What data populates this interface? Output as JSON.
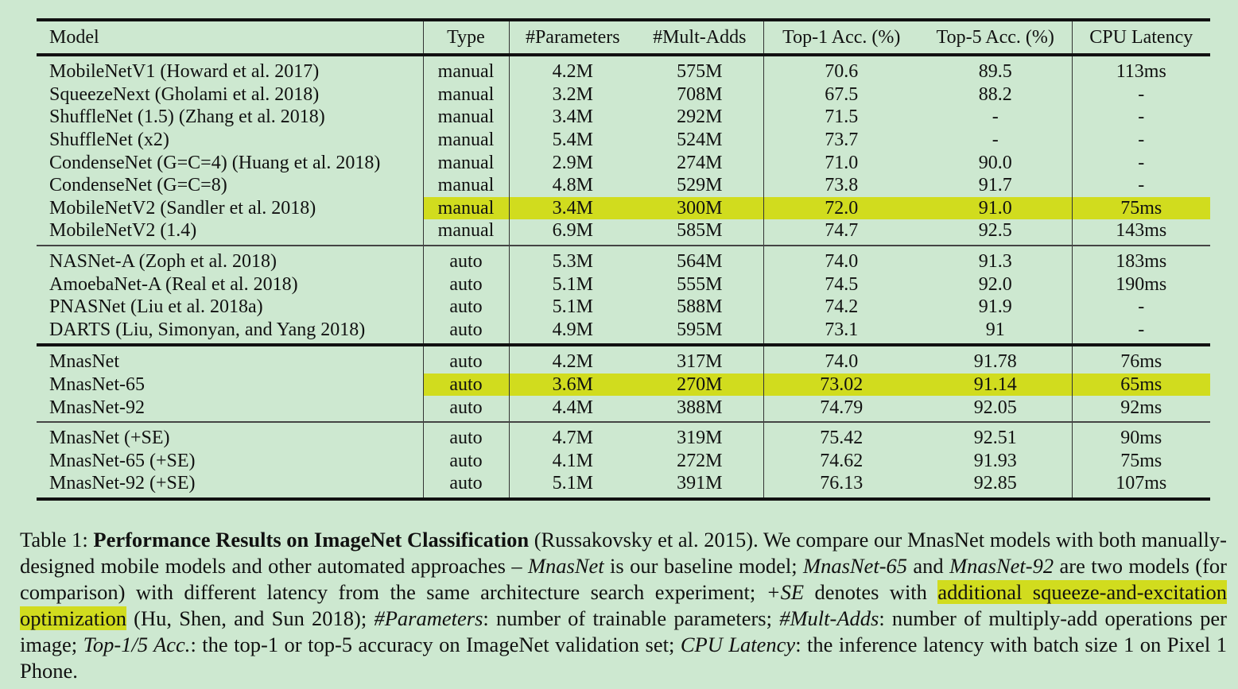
{
  "table": {
    "headers": [
      "Model",
      "Type",
      "#Parameters",
      "#Mult-Adds",
      "Top-1 Acc. (%)",
      "Top-5 Acc. (%)",
      "CPU Latency"
    ],
    "groups": [
      {
        "rows": [
          {
            "model": "MobileNetV1 (Howard et al. 2017)",
            "type": "manual",
            "params": "4.2M",
            "mult_adds": "575M",
            "top1": "70.6",
            "top5": "89.5",
            "latency": "113ms"
          },
          {
            "model": "SqueezeNext (Gholami et al. 2018)",
            "type": "manual",
            "params": "3.2M",
            "mult_adds": "708M",
            "top1": "67.5",
            "top5": "88.2",
            "latency": "-"
          },
          {
            "model": "ShuffleNet (1.5) (Zhang et al. 2018)",
            "type": "manual",
            "params": "3.4M",
            "mult_adds": "292M",
            "top1": "71.5",
            "top5": "-",
            "latency": "-"
          },
          {
            "model": "ShuffleNet (x2)",
            "type": "manual",
            "params": "5.4M",
            "mult_adds": "524M",
            "top1": "73.7",
            "top5": "-",
            "latency": "-"
          },
          {
            "model": "CondenseNet (G=C=4) (Huang et al. 2018)",
            "type": "manual",
            "params": "2.9M",
            "mult_adds": "274M",
            "top1": "71.0",
            "top5": "90.0",
            "latency": "-"
          },
          {
            "model": "CondenseNet (G=C=8)",
            "type": "manual",
            "params": "4.8M",
            "mult_adds": "529M",
            "top1": "73.8",
            "top5": "91.7",
            "latency": "-"
          },
          {
            "model": "MobileNetV2 (Sandler et al. 2018)",
            "type": "manual",
            "params": "3.4M",
            "mult_adds": "300M",
            "top1": "72.0",
            "top5": "91.0",
            "latency": "75ms",
            "highlight": true
          },
          {
            "model": "MobileNetV2 (1.4)",
            "type": "manual",
            "params": "6.9M",
            "mult_adds": "585M",
            "top1": "74.7",
            "top5": "92.5",
            "latency": "143ms"
          }
        ]
      },
      {
        "rows": [
          {
            "model": "NASNet-A (Zoph et al. 2018)",
            "type": "auto",
            "params": "5.3M",
            "mult_adds": "564M",
            "top1": "74.0",
            "top5": "91.3",
            "latency": "183ms"
          },
          {
            "model": "AmoebaNet-A (Real et al. 2018)",
            "type": "auto",
            "params": "5.1M",
            "mult_adds": "555M",
            "top1": "74.5",
            "top5": "92.0",
            "latency": "190ms"
          },
          {
            "model": "PNASNet (Liu et al. 2018a)",
            "type": "auto",
            "params": "5.1M",
            "mult_adds": "588M",
            "top1": "74.2",
            "top5": "91.9",
            "latency": "-"
          },
          {
            "model": "DARTS (Liu, Simonyan, and Yang 2018)",
            "type": "auto",
            "params": "4.9M",
            "mult_adds": "595M",
            "top1": "73.1",
            "top5": "91",
            "latency": "-"
          }
        ]
      },
      {
        "bold": true,
        "rows": [
          {
            "model": "MnasNet",
            "type": "auto",
            "params": "4.2M",
            "mult_adds": "317M",
            "top1": "74.0",
            "top5": "91.78",
            "latency": "76ms"
          },
          {
            "model": "MnasNet-65",
            "type": "auto",
            "params": "3.6M",
            "mult_adds": "270M",
            "top1": "73.02",
            "top5": "91.14",
            "latency": "65ms",
            "highlight": true
          },
          {
            "model": "MnasNet-92",
            "type": "auto",
            "params": "4.4M",
            "mult_adds": "388M",
            "top1": "74.79",
            "top5": "92.05",
            "latency": "92ms"
          }
        ]
      },
      {
        "bold": true,
        "rows": [
          {
            "model": "MnasNet (+SE)",
            "type": "auto",
            "params": "4.7M",
            "mult_adds": "319M",
            "top1": "75.42",
            "top5": "92.51",
            "latency": "90ms"
          },
          {
            "model": "MnasNet-65 (+SE)",
            "type": "auto",
            "params": "4.1M",
            "mult_adds": "272M",
            "top1": "74.62",
            "top5": "91.93",
            "latency": "75ms"
          },
          {
            "model": "MnasNet-92 (+SE)",
            "type": "auto",
            "params": "5.1M",
            "mult_adds": "391M",
            "top1": "76.13",
            "top5": "92.85",
            "latency": "107ms"
          }
        ]
      }
    ]
  },
  "caption": {
    "label": "Table 1: ",
    "title": "Performance Results on ImageNet Classification",
    "t1": " (Russakovsky et al. 2015). We compare our MnasNet models with both manually-designed mobile models and other automated approaches – ",
    "i1": "MnasNet",
    "t2": " is our baseline model; ",
    "i2": "MnasNet-65",
    "t3": " and ",
    "i3": "MnasNet-92",
    "t4": " are two models (for comparison) with different latency from the same architecture search experiment; ",
    "i4": "+SE",
    "t5": " denotes with ",
    "hl": "additional squeeze-and-excitation optimization",
    "t6": " (Hu, Shen, and Sun 2018); ",
    "i5": "#Parameters",
    "t7": ": number of trainable parameters; ",
    "i6": "#Mult-Adds",
    "t8": ": number of multiply-add operations per image; ",
    "i7": "Top-1/5 Acc.",
    "t9": ": the top-1 or top-5 accuracy on ImageNet validation set; ",
    "i8": "CPU Latency",
    "t10": ": the inference latency with batch size 1 on Pixel 1 Phone."
  }
}
